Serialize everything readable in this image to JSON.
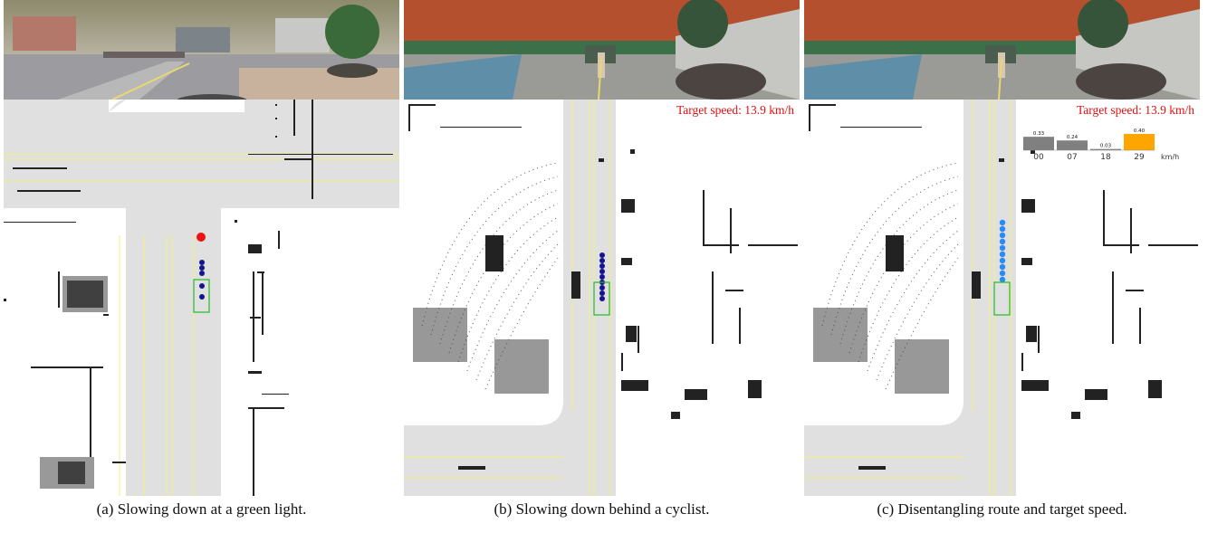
{
  "panels": [
    {
      "id": "a",
      "caption": "(a) Slowing down at a green light.",
      "target_speed": null
    },
    {
      "id": "b",
      "caption": "(b) Slowing down behind a cyclist.",
      "target_speed": "Target speed: 13.9 km/h"
    },
    {
      "id": "c",
      "caption": "(c) Disentangling route and target speed.",
      "target_speed": "Target speed: 13.9 km/h",
      "speed_histogram": {
        "unit": "km/h",
        "bins": [
          {
            "label": "00",
            "prob": "0.33",
            "value": 0.33,
            "color": "#808080"
          },
          {
            "label": "07",
            "prob": "0.24",
            "value": 0.24,
            "color": "#808080"
          },
          {
            "label": "18",
            "prob": "0.03",
            "value": 0.03,
            "color": "#808080"
          },
          {
            "label": "29",
            "prob": "0.40",
            "value": 0.4,
            "color": "#ffa500"
          }
        ]
      }
    }
  ],
  "colors": {
    "road": "#e0e0e0",
    "lane_line": "#f2f07a",
    "ego_box": "#22bb22",
    "route_waypoint_dark": "#14148c",
    "route_waypoint_light": "#2a8cf0",
    "stop_target": "#ee1111",
    "target_speed_text": "#e01010"
  }
}
